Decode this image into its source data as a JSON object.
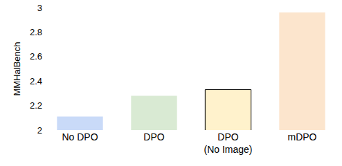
{
  "chart_data": {
    "type": "bar",
    "y_label": "MMHalBench",
    "categories": [
      "No DPO",
      "DPO",
      "DPO\n(No Image)",
      "mDPO"
    ],
    "values": [
      2.11,
      2.28,
      2.33,
      2.96
    ],
    "colors": [
      "#c9daf8",
      "#d9ead3",
      "#fff2cc",
      "#fce5cd"
    ],
    "ylim": [
      2,
      3
    ],
    "yticks": [
      2,
      2.2,
      2.4,
      2.6,
      2.8,
      3
    ],
    "grid": false
  }
}
